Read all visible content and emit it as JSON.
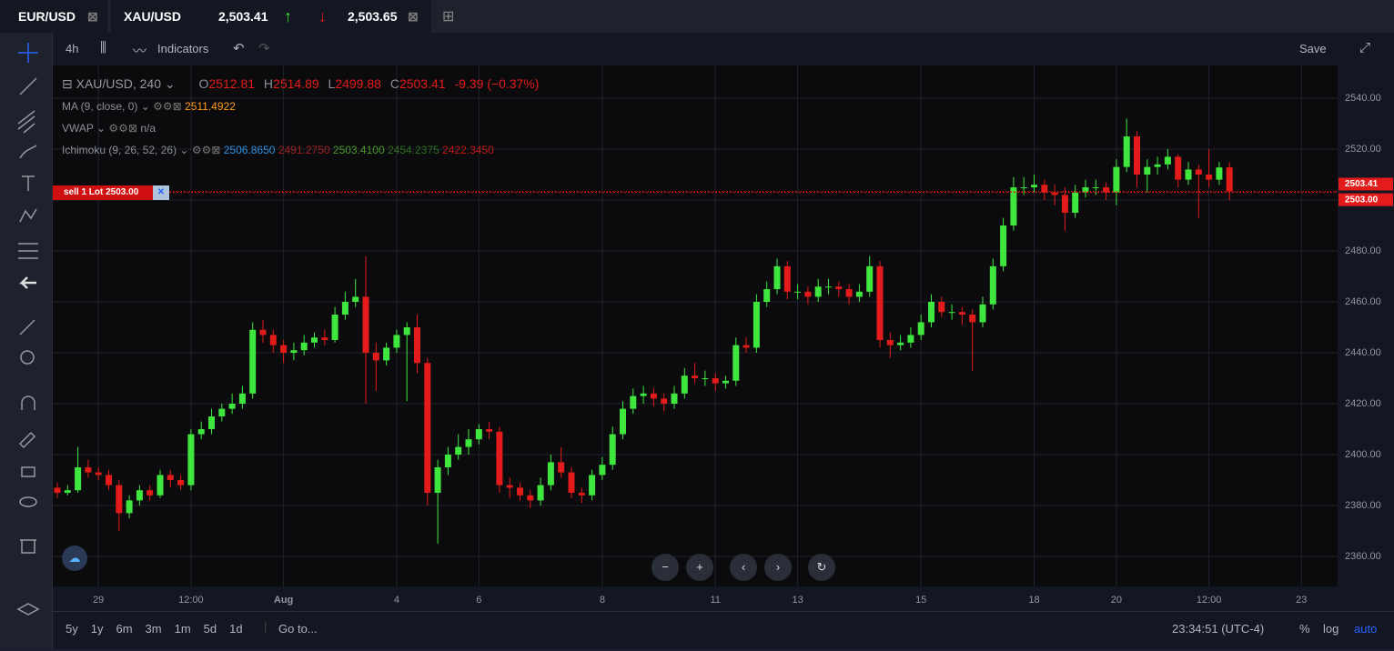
{
  "tabs": [
    {
      "symbol": "EUR/USD"
    },
    {
      "symbol": "XAU/USD",
      "bid": "2,503.41",
      "ask": "2,503.65"
    }
  ],
  "toolbar": {
    "interval": "4h",
    "indicators": "Indicators",
    "save": "Save"
  },
  "legend": {
    "symbol": "XAU/USD, 240",
    "o": "O",
    "h": "H",
    "l": "L",
    "c": "C",
    "change": "-9.39 (−0.37%)",
    "ma": {
      "name": "MA (9, close, 0)",
      "value": "2511.4922"
    },
    "vwap": {
      "name": "VWAP",
      "value": "n/a"
    },
    "ichimoku": {
      "name": "Ichimoku (9, 26, 52, 26)",
      "values": [
        "2506.8650",
        "2491.2750",
        "2503.4100",
        "2454.2375",
        "2422.3450"
      ]
    }
  },
  "order": {
    "label": "sell 1 Lot 2503.00"
  },
  "bottom": {
    "ranges": [
      "5y",
      "1y",
      "6m",
      "3m",
      "1m",
      "5d",
      "1d"
    ],
    "goto": "Go to...",
    "clock": "23:34:51 (UTC-4)",
    "percent": "%",
    "log": "log",
    "auto": "auto"
  },
  "chart_data": {
    "type": "candlestick",
    "up_color": "#3ee63e",
    "down_color": "#e31b1b",
    "ylim": [
      2348.2,
      2551.8
    ],
    "yticks": [
      {
        "value": 2360,
        "label": "2360.00"
      },
      {
        "value": 2380,
        "label": "2380.00"
      },
      {
        "value": 2400,
        "label": "2400.00"
      },
      {
        "value": 2420,
        "label": "2420.00"
      },
      {
        "value": 2440,
        "label": "2440.00"
      },
      {
        "value": 2460,
        "label": "2460.00"
      },
      {
        "value": 2480,
        "label": "2480.00"
      },
      {
        "value": 2500,
        "label": "2500.00"
      },
      {
        "value": 2520,
        "label": "2520.00"
      },
      {
        "value": 2540,
        "label": "2540.00"
      }
    ],
    "xticks": [
      {
        "value": 4,
        "label": "29"
      },
      {
        "value": 13,
        "label": "12:00"
      },
      {
        "value": 22,
        "label": "Aug"
      },
      {
        "value": 33,
        "label": "4"
      },
      {
        "value": 41,
        "label": "6"
      },
      {
        "value": 53,
        "label": "8"
      },
      {
        "value": 64,
        "label": "11"
      },
      {
        "value": 72,
        "label": "13"
      },
      {
        "value": 84,
        "label": "15"
      },
      {
        "value": 95,
        "label": "18"
      },
      {
        "value": 103,
        "label": "20"
      },
      {
        "value": 112,
        "label": "12:00"
      },
      {
        "value": 121,
        "label": "23"
      }
    ],
    "grid": true,
    "current_price": {
      "value": 2503.41,
      "label": "2503.41"
    },
    "order_price": {
      "value": 2503,
      "label": "2503.00"
    },
    "candles": [
      [
        2387,
        2389,
        2383,
        2385
      ],
      [
        2385,
        2388,
        2384,
        2386
      ],
      [
        2386,
        2403,
        2385,
        2395
      ],
      [
        2395,
        2398,
        2391,
        2393
      ],
      [
        2393,
        2395,
        2390,
        2392
      ],
      [
        2392,
        2394,
        2386,
        2388
      ],
      [
        2388,
        2390,
        2370,
        2377
      ],
      [
        2377,
        2384,
        2375,
        2382
      ],
      [
        2382,
        2388,
        2380,
        2386
      ],
      [
        2386,
        2388,
        2382,
        2384
      ],
      [
        2384,
        2394,
        2383,
        2392
      ],
      [
        2392,
        2394,
        2387,
        2390
      ],
      [
        2390,
        2392,
        2386,
        2388
      ],
      [
        2388,
        2410,
        2386,
        2408
      ],
      [
        2408,
        2413,
        2406,
        2410
      ],
      [
        2410,
        2418,
        2408,
        2415
      ],
      [
        2415,
        2420,
        2413,
        2418
      ],
      [
        2418,
        2424,
        2416,
        2420
      ],
      [
        2420,
        2427,
        2418,
        2424
      ],
      [
        2424,
        2452,
        2422,
        2449
      ],
      [
        2449,
        2453,
        2444,
        2447
      ],
      [
        2447,
        2449,
        2440,
        2443
      ],
      [
        2443,
        2445,
        2436,
        2440
      ],
      [
        2440,
        2444,
        2437,
        2441
      ],
      [
        2441,
        2447,
        2439,
        2444
      ],
      [
        2444,
        2448,
        2442,
        2446
      ],
      [
        2446,
        2449,
        2443,
        2445
      ],
      [
        2445,
        2458,
        2444,
        2455
      ],
      [
        2455,
        2464,
        2453,
        2460
      ],
      [
        2460,
        2469,
        2458,
        2462
      ],
      [
        2462,
        2478,
        2420,
        2440
      ],
      [
        2440,
        2444,
        2425,
        2437
      ],
      [
        2437,
        2444,
        2435,
        2442
      ],
      [
        2442,
        2449,
        2440,
        2447
      ],
      [
        2447,
        2452,
        2421,
        2450
      ],
      [
        2450,
        2455,
        2432,
        2436
      ],
      [
        2436,
        2438,
        2380,
        2385
      ],
      [
        2385,
        2398,
        2365,
        2395
      ],
      [
        2395,
        2403,
        2392,
        2400
      ],
      [
        2400,
        2408,
        2398,
        2403
      ],
      [
        2403,
        2410,
        2400,
        2406
      ],
      [
        2406,
        2412,
        2404,
        2410
      ],
      [
        2410,
        2413,
        2406,
        2409
      ],
      [
        2409,
        2411,
        2385,
        2388
      ],
      [
        2388,
        2391,
        2383,
        2387
      ],
      [
        2387,
        2389,
        2382,
        2384
      ],
      [
        2384,
        2386,
        2379,
        2382
      ],
      [
        2382,
        2391,
        2380,
        2388
      ],
      [
        2388,
        2400,
        2386,
        2397
      ],
      [
        2397,
        2403,
        2391,
        2393
      ],
      [
        2393,
        2395,
        2383,
        2385
      ],
      [
        2385,
        2387,
        2381,
        2384
      ],
      [
        2384,
        2394,
        2382,
        2392
      ],
      [
        2392,
        2399,
        2390,
        2396
      ],
      [
        2396,
        2411,
        2394,
        2408
      ],
      [
        2408,
        2421,
        2406,
        2418
      ],
      [
        2418,
        2426,
        2416,
        2423
      ],
      [
        2423,
        2427,
        2420,
        2424
      ],
      [
        2424,
        2426,
        2419,
        2422
      ],
      [
        2422,
        2424,
        2417,
        2420
      ],
      [
        2420,
        2427,
        2418,
        2424
      ],
      [
        2424,
        2434,
        2422,
        2431
      ],
      [
        2431,
        2436,
        2428,
        2430
      ],
      [
        2430,
        2433,
        2427,
        2430
      ],
      [
        2430,
        2432,
        2425,
        2428
      ],
      [
        2428,
        2431,
        2426,
        2429
      ],
      [
        2429,
        2446,
        2427,
        2443
      ],
      [
        2443,
        2446,
        2440,
        2442
      ],
      [
        2442,
        2463,
        2440,
        2460
      ],
      [
        2460,
        2468,
        2458,
        2465
      ],
      [
        2465,
        2477,
        2463,
        2474
      ],
      [
        2474,
        2476,
        2461,
        2464
      ],
      [
        2464,
        2467,
        2461,
        2464
      ],
      [
        2464,
        2466,
        2459,
        2462
      ],
      [
        2462,
        2469,
        2460,
        2466
      ],
      [
        2466,
        2469,
        2463,
        2466
      ],
      [
        2466,
        2468,
        2462,
        2465
      ],
      [
        2465,
        2467,
        2459,
        2462
      ],
      [
        2462,
        2467,
        2460,
        2464
      ],
      [
        2464,
        2478,
        2462,
        2474
      ],
      [
        2474,
        2476,
        2442,
        2445
      ],
      [
        2445,
        2448,
        2438,
        2443
      ],
      [
        2443,
        2447,
        2441,
        2444
      ],
      [
        2444,
        2450,
        2442,
        2447
      ],
      [
        2447,
        2455,
        2445,
        2452
      ],
      [
        2452,
        2463,
        2450,
        2460
      ],
      [
        2460,
        2462,
        2454,
        2456
      ],
      [
        2456,
        2459,
        2453,
        2456
      ],
      [
        2456,
        2458,
        2451,
        2455
      ],
      [
        2455,
        2457,
        2433,
        2452
      ],
      [
        2452,
        2462,
        2450,
        2459
      ],
      [
        2459,
        2477,
        2457,
        2474
      ],
      [
        2474,
        2493,
        2472,
        2490
      ],
      [
        2490,
        2509,
        2488,
        2505
      ],
      [
        2505,
        2509,
        2502,
        2505
      ],
      [
        2505,
        2510,
        2503,
        2506
      ],
      [
        2506,
        2508,
        2500,
        2503
      ],
      [
        2503,
        2506,
        2498,
        2502
      ],
      [
        2502,
        2505,
        2488,
        2495
      ],
      [
        2495,
        2506,
        2493,
        2503
      ],
      [
        2503,
        2508,
        2501,
        2505
      ],
      [
        2505,
        2508,
        2502,
        2505
      ],
      [
        2505,
        2507,
        2500,
        2503
      ],
      [
        2503,
        2516,
        2498,
        2513
      ],
      [
        2513,
        2532,
        2511,
        2525
      ],
      [
        2525,
        2527,
        2505,
        2510
      ],
      [
        2510,
        2516,
        2503,
        2513
      ],
      [
        2513,
        2517,
        2510,
        2514
      ],
      [
        2514,
        2520,
        2512,
        2517
      ],
      [
        2517,
        2518,
        2505,
        2508
      ],
      [
        2508,
        2515,
        2506,
        2512
      ],
      [
        2512,
        2514,
        2493,
        2510
      ],
      [
        2510,
        2520,
        2505,
        2508
      ],
      [
        2508,
        2515,
        2506,
        2512.81
      ],
      [
        2512.81,
        2514.89,
        2499.88,
        2503.41
      ]
    ]
  }
}
